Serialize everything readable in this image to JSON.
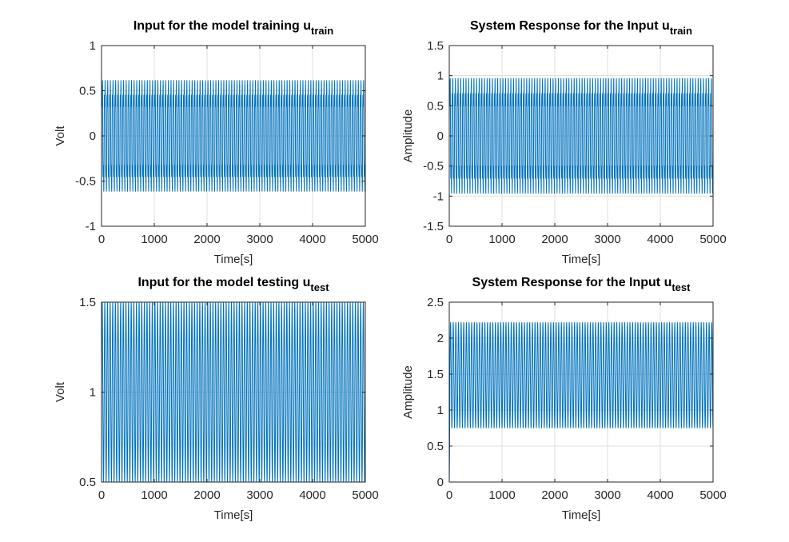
{
  "colors": {
    "trace": "#0072bd",
    "axis": "#262626",
    "grid": "#dfdfdf"
  },
  "chart_data": [
    {
      "type": "line",
      "title": "Input for the model training u",
      "title_subscript": "train",
      "xlabel": "Time[s]",
      "ylabel": "Volt",
      "xlim": [
        0,
        5000
      ],
      "ylim": [
        -1,
        1
      ],
      "xticks": [
        "0",
        "1000",
        "2000",
        "3000",
        "4000",
        "5000"
      ],
      "yticks": [
        "-1",
        "-0.5",
        "0",
        "0.5",
        "1"
      ],
      "grid": true,
      "signal": {
        "form": "sum of sinusoids",
        "duration_s": 5000,
        "cycles": 100,
        "envelope_max": 0.72,
        "envelope_min": -0.72
      }
    },
    {
      "type": "line",
      "title": "System Response for the Input u",
      "title_subscript": "train",
      "xlabel": "Time[s]",
      "ylabel": "Amplitude",
      "xlim": [
        0,
        5000
      ],
      "ylim": [
        -1.5,
        1.5
      ],
      "xticks": [
        "0",
        "1000",
        "2000",
        "3000",
        "4000",
        "5000"
      ],
      "yticks": [
        "-1.5",
        "-1",
        "-0.5",
        "0",
        "0.5",
        "1",
        "1.5"
      ],
      "grid": true,
      "signal": {
        "form": "sum of sinusoids",
        "duration_s": 5000,
        "cycles": 100,
        "envelope_max": 1.12,
        "envelope_min": -1.12
      }
    },
    {
      "type": "line",
      "title": "Input for the model testing u",
      "title_subscript": "test",
      "xlabel": "Time[s]",
      "ylabel": "Volt",
      "xlim": [
        0,
        5000
      ],
      "ylim": [
        0.5,
        1.5
      ],
      "xticks": [
        "0",
        "1000",
        "2000",
        "3000",
        "4000",
        "5000"
      ],
      "yticks": [
        "0.5",
        "1",
        "1.5"
      ],
      "grid": true,
      "signal": {
        "form": "sinusoid",
        "duration_s": 5000,
        "cycles": 100,
        "envelope_max": 1.5,
        "envelope_min": 0.5
      }
    },
    {
      "type": "line",
      "title": "System Response for the Input u",
      "title_subscript": "test",
      "xlabel": "Time[s]",
      "ylabel": "Amplitude",
      "xlim": [
        0,
        5000
      ],
      "ylim": [
        0,
        2.5
      ],
      "xticks": [
        "0",
        "1000",
        "2000",
        "3000",
        "4000",
        "5000"
      ],
      "yticks": [
        "0",
        "0.5",
        "1",
        "1.5",
        "2",
        "2.5"
      ],
      "grid": true,
      "signal": {
        "form": "sinusoid with start-up transient",
        "duration_s": 5000,
        "cycles": 100,
        "envelope_max": 2.22,
        "envelope_min": 0.75,
        "initial_value": 0
      }
    }
  ]
}
